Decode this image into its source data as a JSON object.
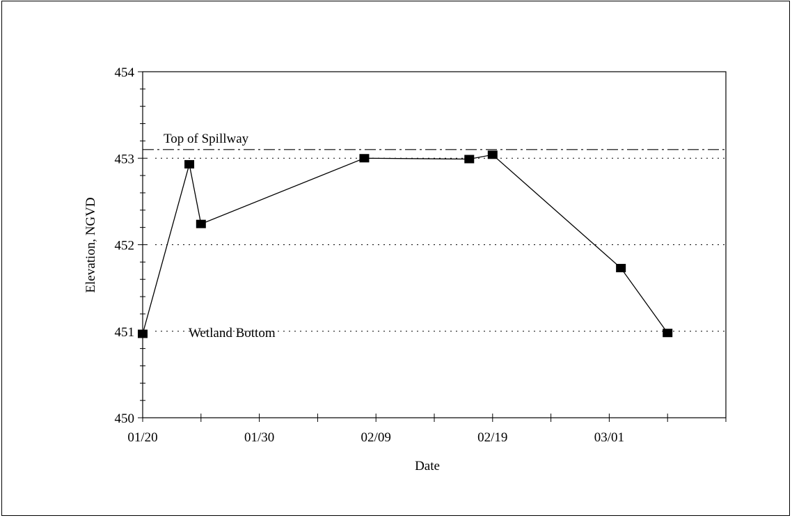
{
  "chart_data": {
    "type": "line",
    "xlabel": "Date",
    "ylabel": "Elevation, NGVD",
    "ylim": [
      450,
      454
    ],
    "y_ticks": [
      450,
      451,
      452,
      453,
      454
    ],
    "y_tick_labels": [
      "450",
      "451",
      "452",
      "453",
      "454"
    ],
    "x_ticks": [
      "01/20",
      "01/30",
      "02/09",
      "02/19",
      "03/01"
    ],
    "xlim": [
      "01/20",
      "03/11"
    ],
    "grid": false,
    "legend": "none",
    "series": [
      {
        "x": [
          "01/20",
          "01/24",
          "01/25",
          "02/08",
          "02/17",
          "02/19",
          "03/02",
          "03/06"
        ],
        "y": [
          450.97,
          452.93,
          452.24,
          453.0,
          452.99,
          453.04,
          451.73,
          450.98
        ],
        "marker": "square",
        "color": "#000000"
      }
    ],
    "reference_lines": [
      {
        "label": "Top of Spillway",
        "y": 453.1,
        "style": "dash-dot"
      },
      {
        "label": "",
        "y": 453.0,
        "style": "dotted"
      },
      {
        "label": "",
        "y": 452.0,
        "style": "dotted"
      },
      {
        "label": "Wetland Bottom",
        "y": 451.0,
        "style": "dotted"
      }
    ]
  }
}
